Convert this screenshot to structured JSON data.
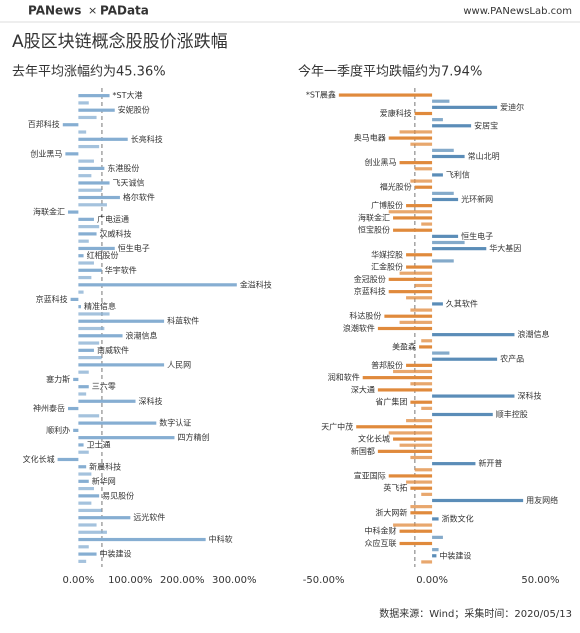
{
  "header": {
    "logo_left": "PANews",
    "logo_sep": "×",
    "logo_right": "PAData",
    "url": "www.PANewsLab.com",
    "title": "A股区块链概念股股价涨跌幅"
  },
  "footer": {
    "source": "数据来源：Wind；采集时间：2020/05/13"
  },
  "chart_data": [
    {
      "type": "bar",
      "orientation": "horizontal",
      "title": "去年平均涨幅约为45.36%",
      "avg": 45.36,
      "color": "#86aed2",
      "xlim": [
        -45,
        340
      ],
      "xticks": [
        {
          "value": 0,
          "label": "0.00%"
        },
        {
          "value": 100,
          "label": "100.00%"
        },
        {
          "value": 200,
          "label": "200.00%"
        },
        {
          "value": 300,
          "label": "300.00%"
        }
      ],
      "categories": [
        "*ST大港",
        null,
        "安妮股份",
        null,
        "百邦科技",
        null,
        "长亮科技",
        null,
        "创业黑马",
        null,
        "东港股份",
        null,
        "飞天诚信",
        null,
        "格尔软件",
        null,
        "海联金汇",
        "广电运通",
        null,
        "汉威科技",
        null,
        "恒生电子",
        "红相股份",
        null,
        "华宇软件",
        null,
        "金溢科技",
        null,
        "京蓝科技",
        "精准信息",
        null,
        "科蓝软件",
        null,
        "浪潮信息",
        null,
        "南威软件",
        null,
        "人民网",
        null,
        "塞力斯",
        "三六零",
        null,
        "深科技",
        "神州泰岳",
        null,
        "数字认证",
        "顺利办",
        "四方精创",
        "卫士通",
        null,
        "文化长城",
        "新晨科技",
        null,
        "新华网",
        null,
        "易见股份",
        null,
        null,
        "远光软件",
        null,
        null,
        "中科软",
        null,
        "中装建设",
        null
      ],
      "values": [
        60,
        20,
        70,
        35,
        -30,
        15,
        95,
        40,
        -25,
        30,
        50,
        25,
        60,
        45,
        80,
        55,
        -20,
        30,
        40,
        35,
        20,
        70,
        10,
        30,
        45,
        25,
        305,
        10,
        -15,
        5,
        60,
        165,
        50,
        85,
        40,
        30,
        45,
        165,
        20,
        -10,
        20,
        15,
        110,
        -20,
        40,
        150,
        -10,
        185,
        10,
        20,
        -40,
        15,
        25,
        20,
        30,
        40,
        25,
        45,
        100,
        35,
        55,
        245,
        20,
        35,
        15
      ]
    },
    {
      "type": "bar",
      "orientation": "horizontal",
      "title": "今年一季度平均跌幅约为7.94%",
      "avg": -7.94,
      "positive_color": "#5b8db8",
      "negative_color": "#e08a3c",
      "xlim": [
        -60,
        65
      ],
      "xticks": [
        {
          "value": -50,
          "label": "-50.00%"
        },
        {
          "value": 0,
          "label": "0.00%"
        },
        {
          "value": 50,
          "label": "50.00%"
        }
      ],
      "categories": [
        "*ST晨鑫",
        null,
        "爱迪尔",
        "爱康科技",
        null,
        "安居宝",
        null,
        "奥马电器",
        null,
        null,
        "常山北明",
        "创业黑马",
        null,
        "飞利信",
        null,
        "福光股份",
        null,
        "光环新网",
        "广博股份",
        null,
        "海联金汇",
        null,
        "恒宝股份",
        "恒生电子",
        null,
        "华大基因",
        "华媒控股",
        null,
        "汇金股份",
        null,
        "金冠股份",
        null,
        "京蓝科技",
        null,
        "久其软件",
        null,
        "科达股份",
        null,
        "浪潮软件",
        "浪潮信息",
        null,
        "美盈森",
        null,
        "农产品",
        "普邦股份",
        null,
        "润和软件",
        null,
        "深大通",
        "深科技",
        "省广集团",
        null,
        "顺丰控股",
        null,
        "天广中茂",
        null,
        "文化长城",
        null,
        "新国都",
        null,
        "新开普",
        null,
        "宣亚国际",
        null,
        "英飞拓",
        null,
        "用友网络",
        null,
        "浙大网新",
        "浙数文化",
        null,
        "中科金财",
        null,
        "众应互联",
        null,
        "中装建设",
        null
      ],
      "values": [
        -43,
        8,
        30,
        -8,
        5,
        18,
        -15,
        -20,
        -10,
        10,
        15,
        -15,
        -8,
        5,
        -10,
        -8,
        10,
        12,
        -12,
        -20,
        -18,
        -5,
        -18,
        12,
        15,
        25,
        -12,
        10,
        -12,
        -15,
        -20,
        -8,
        -20,
        -12,
        5,
        -10,
        -22,
        -15,
        -25,
        38,
        -5,
        -6,
        8,
        30,
        -12,
        -18,
        -32,
        -10,
        -25,
        38,
        -10,
        -5,
        28,
        -12,
        -35,
        -20,
        -18,
        -15,
        -25,
        -10,
        20,
        -8,
        -20,
        -12,
        -10,
        -5,
        42,
        -10,
        -10,
        3,
        -18,
        -15,
        5,
        -15,
        3,
        2,
        -5
      ]
    }
  ]
}
